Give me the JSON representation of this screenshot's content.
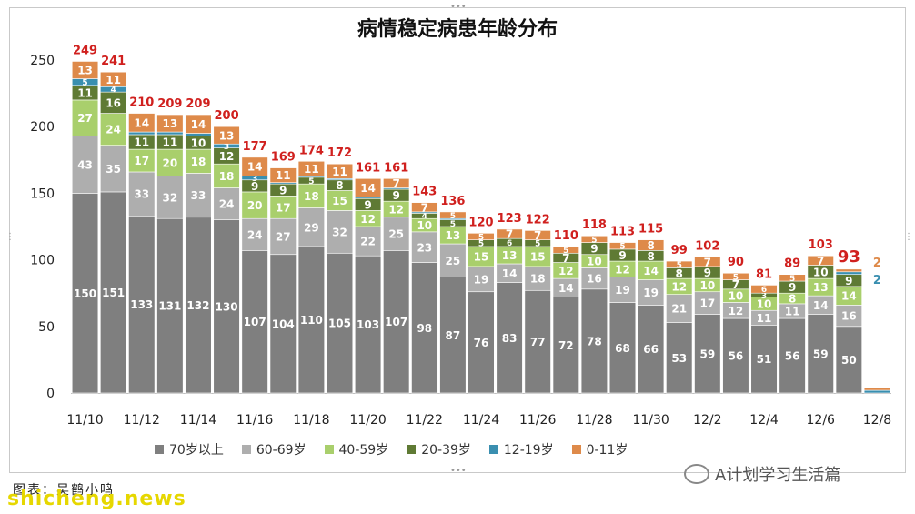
{
  "chart_data": {
    "type": "bar",
    "stacked": true,
    "title": "病情稳定病患年龄分布",
    "ylim": [
      0,
      250
    ],
    "yticks": [
      "0",
      "50",
      "100",
      "150",
      "200",
      "250"
    ],
    "categories": [
      "11/10",
      "11/11",
      "11/12",
      "11/13",
      "11/14",
      "11/15",
      "11/16",
      "11/17",
      "11/18",
      "11/19",
      "11/20",
      "11/21",
      "11/22",
      "11/23",
      "11/24",
      "11/25",
      "11/26",
      "11/27",
      "11/28",
      "11/29",
      "11/30",
      "12/1",
      "12/2",
      "12/3",
      "12/4",
      "12/5",
      "12/6",
      "12/7",
      "12/8"
    ],
    "xtick_labels": [
      "11/10",
      "",
      "11/12",
      "",
      "11/14",
      "",
      "11/16",
      "",
      "11/18",
      "",
      "11/20",
      "",
      "11/22",
      "",
      "11/24",
      "",
      "11/26",
      "",
      "11/28",
      "",
      "11/30",
      "",
      "12/2",
      "",
      "12/4",
      "",
      "12/6",
      "",
      "12/8"
    ],
    "series": [
      {
        "name": "70岁以上",
        "color": "#7f7f7f",
        "values": [
          150,
          151,
          133,
          131,
          132,
          130,
          107,
          104,
          110,
          105,
          103,
          107,
          98,
          87,
          76,
          83,
          77,
          72,
          78,
          68,
          66,
          53,
          59,
          56,
          51,
          56,
          59,
          50,
          0
        ]
      },
      {
        "name": "60-69岁",
        "color": "#aeaeae",
        "values": [
          43,
          35,
          33,
          32,
          33,
          24,
          24,
          27,
          29,
          32,
          22,
          25,
          23,
          25,
          19,
          14,
          18,
          14,
          16,
          19,
          19,
          21,
          17,
          12,
          11,
          11,
          14,
          16,
          0
        ]
      },
      {
        "name": "40-59岁",
        "color": "#a9cf6c",
        "values": [
          27,
          24,
          17,
          20,
          18,
          18,
          20,
          17,
          18,
          15,
          12,
          12,
          10,
          13,
          15,
          13,
          15,
          12,
          10,
          12,
          14,
          12,
          10,
          10,
          10,
          8,
          13,
          14,
          0
        ]
      },
      {
        "name": "20-39岁",
        "color": "#5f7a34",
        "values": [
          11,
          16,
          11,
          11,
          10,
          12,
          9,
          9,
          5,
          8,
          9,
          9,
          4,
          5,
          5,
          6,
          5,
          7,
          9,
          9,
          8,
          8,
          9,
          7,
          3,
          9,
          10,
          9,
          0
        ]
      },
      {
        "name": "12-19岁",
        "color": "#3a8fb0",
        "values": [
          5,
          4,
          2,
          2,
          2,
          3,
          3,
          1,
          1,
          1,
          1,
          1,
          1,
          1,
          0,
          0,
          0,
          0,
          0,
          0,
          0,
          0,
          0,
          0,
          0,
          0,
          0,
          2,
          2
        ]
      },
      {
        "name": "0-11岁",
        "color": "#de8a4a",
        "values": [
          13,
          11,
          14,
          13,
          14,
          13,
          14,
          11,
          11,
          11,
          14,
          7,
          7,
          5,
          5,
          7,
          7,
          5,
          5,
          5,
          8,
          5,
          7,
          5,
          6,
          5,
          7,
          2,
          2
        ]
      }
    ],
    "segment_labels": [
      [
        "150",
        "43",
        "27",
        "11",
        "5",
        "13"
      ],
      [
        "151",
        "35",
        "24",
        "16",
        "4",
        "11"
      ],
      [
        "133",
        "33",
        "17",
        "11",
        "2",
        "14"
      ],
      [
        "131",
        "32",
        "20",
        "11",
        "2",
        "13"
      ],
      [
        "132",
        "33",
        "18",
        "10",
        "2",
        "14"
      ],
      [
        "130",
        "24",
        "18",
        "12",
        "3",
        "13"
      ],
      [
        "107",
        "24",
        "20",
        "9",
        "3",
        "14"
      ],
      [
        "104",
        "27",
        "17",
        "9",
        "1",
        "11"
      ],
      [
        "110",
        "29",
        "18",
        "5",
        "1",
        "11"
      ],
      [
        "105",
        "32",
        "15",
        "8",
        "1",
        "11"
      ],
      [
        "103",
        "22",
        "12",
        "9",
        "1",
        "14"
      ],
      [
        "107",
        "25",
        "12",
        "9",
        "1",
        "7"
      ],
      [
        "98",
        "23",
        "10",
        "4",
        "1",
        "7"
      ],
      [
        "87",
        "25",
        "13",
        "5",
        "1",
        "5"
      ],
      [
        "76",
        "19",
        "15",
        "5",
        "",
        "5"
      ],
      [
        "83",
        "14",
        "13",
        "6",
        "",
        "7"
      ],
      [
        "77",
        "18",
        "15",
        "5",
        "",
        "7"
      ],
      [
        "72",
        "14",
        "12",
        "7",
        "",
        "5"
      ],
      [
        "78",
        "16",
        "10",
        "9",
        "",
        "5"
      ],
      [
        "68",
        "19",
        "12",
        "9",
        "",
        "5"
      ],
      [
        "66",
        "19",
        "14",
        "8",
        "",
        "8"
      ],
      [
        "53",
        "21",
        "12",
        "8",
        "",
        "5"
      ],
      [
        "59",
        "17",
        "10",
        "9",
        "",
        "7"
      ],
      [
        "56",
        "12",
        "10",
        "7",
        "",
        "5"
      ],
      [
        "51",
        "11",
        "10",
        "3",
        "",
        "6"
      ],
      [
        "56",
        "11",
        "8",
        "9",
        "",
        "5"
      ],
      [
        "59",
        "14",
        "13",
        "10",
        "",
        "7"
      ],
      [
        "50",
        "16",
        "14",
        "9",
        "",
        ""
      ],
      [
        "",
        "",
        "",
        "",
        "2",
        "2"
      ]
    ],
    "totals": [
      "249",
      "241",
      "210",
      "209",
      "209",
      "200",
      "177",
      "169",
      "174",
      "172",
      "161",
      "161",
      "143",
      "136",
      "120",
      "123",
      "122",
      "110",
      "118",
      "113",
      "115",
      "99",
      "102",
      "90",
      "81",
      "89",
      "103",
      "93",
      ""
    ],
    "last_total_emphasis": "93",
    "aside_labels": [
      {
        "text": "2",
        "color": "#de8a4a"
      },
      {
        "text": "2",
        "color": "#3a8fb0"
      }
    ],
    "grid": false,
    "legend_position": "bottom"
  },
  "footer": {
    "credit": "图表：吴鹤小鸣",
    "watermark_site": "shicheng.news",
    "watermark_wechat": "A计划学习生活篇"
  },
  "colors": {
    "total_label": "#d0201e",
    "axis": "#bfbfbf"
  }
}
